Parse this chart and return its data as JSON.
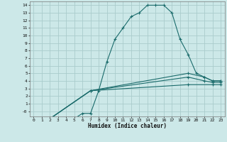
{
  "xlabel": "Humidex (Indice chaleur)",
  "bg_color": "#cce8e8",
  "grid_color": "#aacccc",
  "line_color": "#1a6b6b",
  "xlim": [
    -0.5,
    23.5
  ],
  "ylim": [
    -0.7,
    14.5
  ],
  "xticks": [
    0,
    1,
    2,
    3,
    4,
    5,
    6,
    7,
    8,
    9,
    10,
    11,
    12,
    13,
    14,
    15,
    16,
    17,
    18,
    19,
    20,
    21,
    22,
    23
  ],
  "yticks": [
    0,
    1,
    2,
    3,
    4,
    5,
    6,
    7,
    8,
    9,
    10,
    11,
    12,
    13,
    14
  ],
  "ytick_labels": [
    "-0",
    "1",
    "2",
    "3",
    "4",
    "5",
    "6",
    "7",
    "8",
    "9",
    "10",
    "11",
    "12",
    "13",
    "14"
  ],
  "lines": [
    {
      "x": [
        2,
        3,
        4,
        5,
        6,
        7,
        8,
        9,
        10,
        11,
        12,
        13,
        14,
        15,
        16,
        17,
        18,
        19,
        20,
        21,
        22,
        23
      ],
      "y": [
        -1,
        -1,
        -1,
        -1,
        -0.3,
        -0.3,
        2.7,
        6.5,
        9.5,
        11,
        12.5,
        13,
        14,
        14,
        14,
        13,
        9.5,
        7.5,
        5,
        4.5,
        4,
        4
      ]
    },
    {
      "x": [
        2,
        7,
        19,
        21,
        22,
        23
      ],
      "y": [
        -1,
        2.7,
        5,
        4.5,
        4,
        4
      ]
    },
    {
      "x": [
        2,
        7,
        19,
        21,
        22,
        23
      ],
      "y": [
        -1,
        2.7,
        4.5,
        4.0,
        3.8,
        3.8
      ]
    },
    {
      "x": [
        2,
        7,
        19,
        22,
        23
      ],
      "y": [
        -1,
        2.7,
        3.5,
        3.5,
        3.5
      ]
    }
  ]
}
